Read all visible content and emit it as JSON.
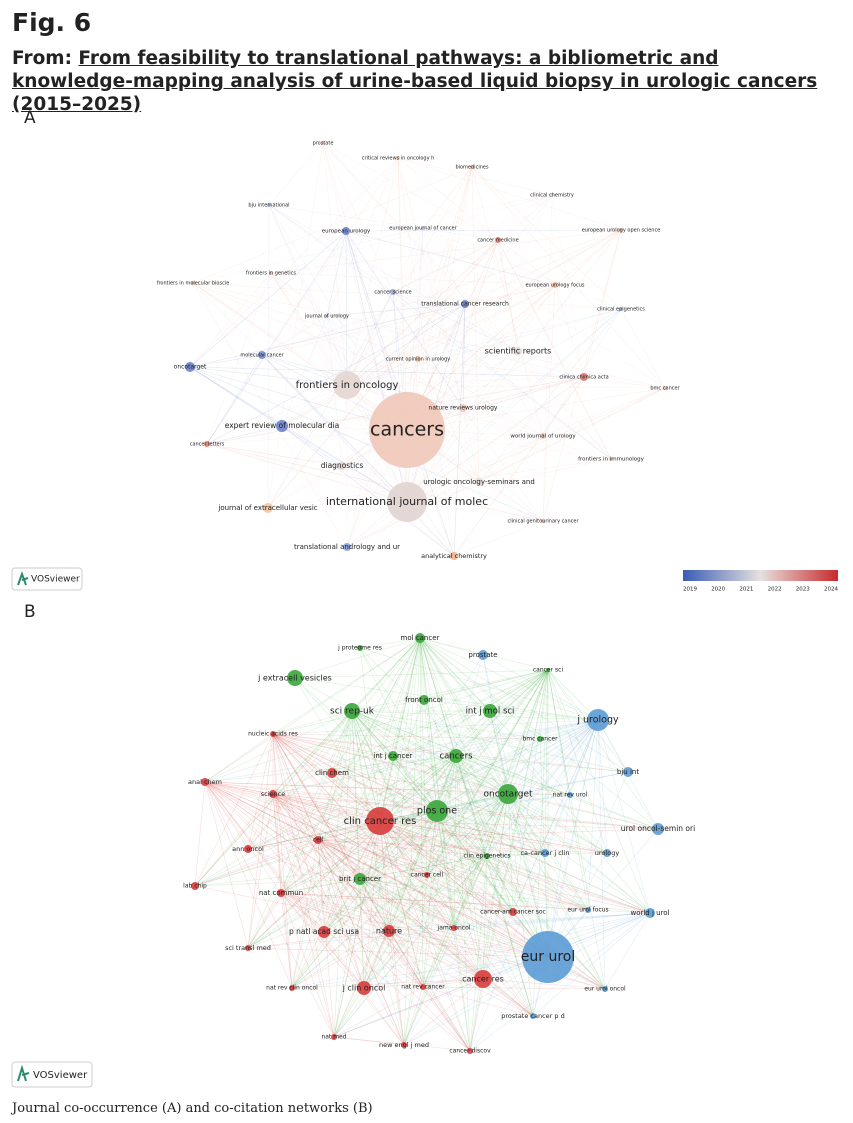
{
  "header": {
    "fig_label": "Fig. 6",
    "from_prefix": "From:",
    "article_title": "From feasibility to translational pathways: a bibliometric and knowledge-mapping analysis of urine-based liquid biopsy in urologic cancers (2015–2025)"
  },
  "panels": [
    {
      "label": "A",
      "nodes": [
        "prostate",
        "critical reviews in oncology h",
        "biomedicines",
        "clinical chemistry",
        "bju international",
        "european urology",
        "european journal of cancer",
        "european urology open science",
        "cancer medicine",
        "frontiers in genetics",
        "frontiers in molecular bioscie",
        "european urology focus",
        "cancer science",
        "translational cancer research",
        "clinical epigenetics",
        "journal of urology",
        "scientific reports",
        "molecular cancer",
        "current opinion in urology",
        "oncotarget",
        "frontiers in oncology",
        "clinica chimica acta",
        "bmc cancer",
        "nature reviews urology",
        "cancers",
        "expert review of molecular dia",
        "world journal of urology",
        "cancer letters",
        "frontiers in immunology",
        "diagnostics",
        "urologic oncology-seminars and",
        "international journal of molec",
        "journal of extracellular vesic",
        "clinical genitourinary cancer",
        "translational andrology and ur",
        "analytical chemistry"
      ],
      "legend": {
        "ticks": [
          2019,
          2020,
          2021,
          2022,
          2023,
          2024
        ]
      },
      "logo": "VOSviewer"
    },
    {
      "label": "B",
      "nodes": [
        "mol cancer",
        "j proteome res",
        "prostate",
        "cancer sci",
        "j extracell vesicles",
        "front oncol",
        "sci rep-uk",
        "int j mol sci",
        "j urology",
        "nucleic acids res",
        "bmc cancer",
        "int j cancer",
        "cancers",
        "clin chem",
        "bju int",
        "anal chem",
        "oncotarget",
        "nat rev urol",
        "science",
        "plos one",
        "clin cancer res",
        "cell",
        "ann oncol",
        "urol oncol-semin ori",
        "clin epigenetics",
        "ca-cancer j clin",
        "urology",
        "brit j cancer",
        "cancer cell",
        "lab chip",
        "nat commun",
        "cancer-am cancer soc",
        "eur urol focus",
        "world j urol",
        "jama oncol",
        "p natl acad sci usa",
        "nature",
        "sci transl med",
        "eur urol",
        "cancer res",
        "nat rev clin oncol",
        "j clin oncol",
        "nat rev cancer",
        "eur urol oncol",
        "prostate cancer p d",
        "nat med",
        "new engl j med",
        "cancer discov"
      ],
      "logo": "VOSviewer"
    }
  ],
  "caption": "Journal co-occurrence (A) and co-citation networks (B)"
}
